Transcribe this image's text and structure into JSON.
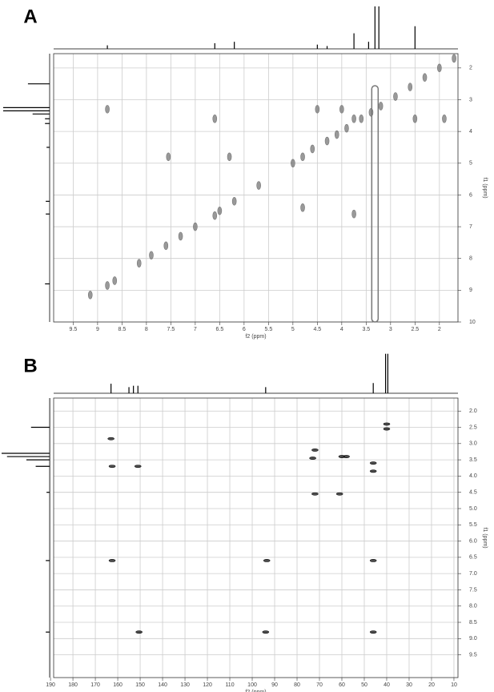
{
  "chart_data": [
    {
      "type": "scatter",
      "panel_label": "A",
      "xlabel": "f2 (ppm)",
      "ylabel": "f1 (ppm)",
      "xlim": [
        9.9,
        1.62
      ],
      "ylim": [
        1.55,
        10
      ],
      "xticks": [
        9.5,
        9.0,
        8.5,
        8.0,
        7.5,
        7.0,
        6.5,
        6.0,
        5.5,
        5.0,
        4.5,
        4.0,
        3.5,
        3.0,
        2.5,
        2.0
      ],
      "yticks": [
        2,
        3,
        4,
        5,
        6,
        7,
        8,
        9,
        10
      ],
      "grid": true,
      "peak_color": "#777",
      "peaks": {
        "x": [
          9.15,
          8.8,
          8.65,
          8.15,
          7.9,
          7.6,
          7.3,
          7.0,
          6.6,
          6.5,
          6.2,
          5.7,
          5.0,
          4.8,
          4.6,
          4.3,
          4.1,
          3.9,
          3.6,
          3.4,
          3.2,
          2.9,
          2.6,
          2.3,
          2.0,
          1.7,
          8.8,
          7.55,
          6.6,
          6.3,
          4.8,
          4.5,
          3.75,
          3.75,
          2.5,
          1.9,
          4.0
        ],
        "y": [
          9.15,
          8.85,
          8.7,
          8.15,
          7.9,
          7.6,
          7.3,
          7.0,
          6.65,
          6.5,
          6.2,
          5.7,
          5.0,
          4.8,
          4.55,
          4.3,
          4.1,
          3.9,
          3.6,
          3.4,
          3.2,
          2.9,
          2.6,
          2.3,
          2.0,
          1.7,
          3.3,
          4.8,
          3.6,
          4.8,
          6.4,
          3.3,
          6.6,
          3.6,
          3.6,
          3.6,
          3.3
        ]
      },
      "streak_x": 3.32,
      "projection_top": {
        "x": [
          8.8,
          6.6,
          6.2,
          4.5,
          4.3,
          3.75,
          3.45,
          3.32,
          3.24,
          2.5
        ],
        "height": [
          5,
          8,
          10,
          6,
          4,
          22,
          10,
          60,
          60,
          32
        ]
      },
      "projection_left": {
        "y": [
          2.5,
          3.25,
          3.35,
          3.45,
          3.6,
          3.75,
          4.5,
          6.2,
          6.6,
          8.8
        ],
        "height": [
          28,
          60,
          60,
          22,
          6,
          6,
          4,
          5,
          5,
          6
        ]
      }
    },
    {
      "type": "scatter",
      "panel_label": "B",
      "xlabel": "f2 (ppm)",
      "ylabel": "f1 (ppm)",
      "xlim": [
        188.6,
        8.2
      ],
      "ylim": [
        1.6,
        10.2
      ],
      "xticks": [
        190,
        180,
        170,
        160,
        150,
        140,
        130,
        120,
        110,
        100,
        90,
        80,
        70,
        60,
        50,
        40,
        30,
        20,
        10
      ],
      "yticks": [
        {
          "value": 2,
          "label": "2.0"
        },
        2.5,
        {
          "value": 3,
          "label": "3.0"
        },
        3.5,
        {
          "value": 4,
          "label": "4.0"
        },
        4.5,
        {
          "value": 5,
          "label": "5.0"
        },
        5.5,
        {
          "value": 6,
          "label": "6.0"
        },
        6.5,
        {
          "value": 7,
          "label": "7.0"
        },
        7.5,
        {
          "value": 8,
          "label": "8.0"
        },
        8.5,
        {
          "value": 9,
          "label": "9.0"
        },
        9.5
      ],
      "grid": true,
      "peak_color": "#111",
      "peaks": {
        "x": [
          163,
          162.5,
          151,
          162.5,
          93.5,
          46,
          150.5,
          94,
          46,
          72,
          73,
          60,
          58,
          46,
          46,
          40,
          40,
          72,
          61
        ],
        "y": [
          2.85,
          3.7,
          3.7,
          6.6,
          6.6,
          6.6,
          8.8,
          8.8,
          8.8,
          3.2,
          3.45,
          3.4,
          3.4,
          3.6,
          3.85,
          2.4,
          2.55,
          4.55,
          4.55
        ]
      },
      "projection_top": {
        "x": [
          163,
          155,
          153,
          151,
          94,
          46,
          40.5,
          39.5
        ],
        "height": [
          14,
          9,
          11,
          11,
          9,
          15,
          58,
          58
        ]
      },
      "projection_left": {
        "y": [
          2.5,
          3.3,
          3.4,
          3.5,
          3.7,
          4.5,
          6.6,
          8.8
        ],
        "height": [
          24,
          62,
          55,
          30,
          18,
          4,
          5,
          5
        ]
      }
    }
  ]
}
